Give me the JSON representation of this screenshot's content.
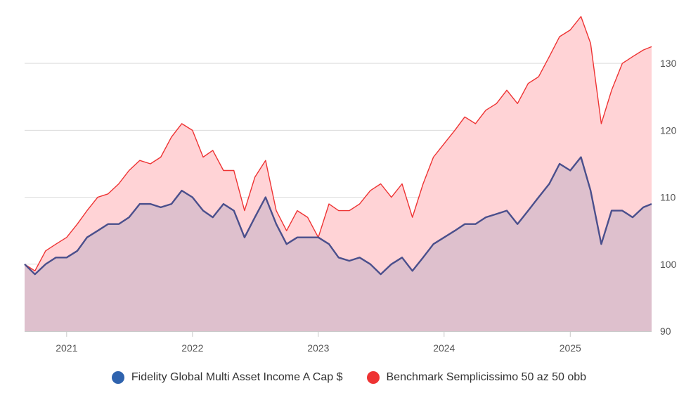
{
  "chart_data": {
    "type": "line",
    "title": "",
    "xlabel": "",
    "ylabel": "",
    "x_range": [
      "2020-09-01",
      "2025-08-25"
    ],
    "ylim": [
      90,
      138
    ],
    "y_ticks": [
      90,
      100,
      110,
      120,
      130
    ],
    "x_ticks": [
      "2021",
      "2022",
      "2023",
      "2024",
      "2025"
    ],
    "x_tick_dates": [
      "2021-01-01",
      "2022-01-01",
      "2023-01-01",
      "2024-01-01",
      "2025-01-01"
    ],
    "grid": true,
    "y_axis_side": "right",
    "legend_position": "bottom",
    "series": [
      {
        "name": "Benchmark Semplicissimo 50 az 50 obb",
        "color": "#ee3333",
        "fill": "#ffd3d6",
        "points": [
          [
            "2020-09-01",
            100
          ],
          [
            "2020-10-01",
            99
          ],
          [
            "2020-11-01",
            102
          ],
          [
            "2020-12-01",
            103
          ],
          [
            "2021-01-01",
            104
          ],
          [
            "2021-02-01",
            106
          ],
          [
            "2021-03-01",
            108
          ],
          [
            "2021-04-01",
            110
          ],
          [
            "2021-05-01",
            110.5
          ],
          [
            "2021-06-01",
            112
          ],
          [
            "2021-07-01",
            114
          ],
          [
            "2021-08-01",
            115.5
          ],
          [
            "2021-09-01",
            115
          ],
          [
            "2021-10-01",
            116
          ],
          [
            "2021-11-01",
            119
          ],
          [
            "2021-12-01",
            121
          ],
          [
            "2022-01-01",
            120
          ],
          [
            "2022-02-01",
            116
          ],
          [
            "2022-03-01",
            117
          ],
          [
            "2022-04-01",
            114
          ],
          [
            "2022-05-01",
            114
          ],
          [
            "2022-06-01",
            108
          ],
          [
            "2022-07-01",
            113
          ],
          [
            "2022-08-01",
            115.5
          ],
          [
            "2022-09-01",
            108
          ],
          [
            "2022-10-01",
            105
          ],
          [
            "2022-11-01",
            108
          ],
          [
            "2022-12-01",
            107
          ],
          [
            "2023-01-01",
            104
          ],
          [
            "2023-02-01",
            109
          ],
          [
            "2023-03-01",
            108
          ],
          [
            "2023-04-01",
            108
          ],
          [
            "2023-05-01",
            109
          ],
          [
            "2023-06-01",
            111
          ],
          [
            "2023-07-01",
            112
          ],
          [
            "2023-08-01",
            110
          ],
          [
            "2023-09-01",
            112
          ],
          [
            "2023-10-01",
            107
          ],
          [
            "2023-11-01",
            112
          ],
          [
            "2023-12-01",
            116
          ],
          [
            "2024-01-01",
            118
          ],
          [
            "2024-02-01",
            120
          ],
          [
            "2024-03-01",
            122
          ],
          [
            "2024-04-01",
            121
          ],
          [
            "2024-05-01",
            123
          ],
          [
            "2024-06-01",
            124
          ],
          [
            "2024-07-01",
            126
          ],
          [
            "2024-08-01",
            124
          ],
          [
            "2024-09-01",
            127
          ],
          [
            "2024-10-01",
            128
          ],
          [
            "2024-11-01",
            131
          ],
          [
            "2024-12-01",
            134
          ],
          [
            "2025-01-01",
            135
          ],
          [
            "2025-02-01",
            137
          ],
          [
            "2025-03-01",
            133
          ],
          [
            "2025-04-01",
            121
          ],
          [
            "2025-05-01",
            126
          ],
          [
            "2025-06-01",
            130
          ],
          [
            "2025-07-01",
            131
          ],
          [
            "2025-08-01",
            132
          ],
          [
            "2025-08-25",
            132.5
          ]
        ]
      },
      {
        "name": "Fidelity Global Multi Asset Income A Cap $",
        "color": "#4a4f8c",
        "fill": "#dcbfcc",
        "points": [
          [
            "2020-09-01",
            100
          ],
          [
            "2020-10-01",
            98.5
          ],
          [
            "2020-11-01",
            100
          ],
          [
            "2020-12-01",
            101
          ],
          [
            "2021-01-01",
            101
          ],
          [
            "2021-02-01",
            102
          ],
          [
            "2021-03-01",
            104
          ],
          [
            "2021-04-01",
            105
          ],
          [
            "2021-05-01",
            106
          ],
          [
            "2021-06-01",
            106
          ],
          [
            "2021-07-01",
            107
          ],
          [
            "2021-08-01",
            109
          ],
          [
            "2021-09-01",
            109
          ],
          [
            "2021-10-01",
            108.5
          ],
          [
            "2021-11-01",
            109
          ],
          [
            "2021-12-01",
            111
          ],
          [
            "2022-01-01",
            110
          ],
          [
            "2022-02-01",
            108
          ],
          [
            "2022-03-01",
            107
          ],
          [
            "2022-04-01",
            109
          ],
          [
            "2022-05-01",
            108
          ],
          [
            "2022-06-01",
            104
          ],
          [
            "2022-07-01",
            107
          ],
          [
            "2022-08-01",
            110
          ],
          [
            "2022-09-01",
            106
          ],
          [
            "2022-10-01",
            103
          ],
          [
            "2022-11-01",
            104
          ],
          [
            "2022-12-01",
            104
          ],
          [
            "2023-01-01",
            104
          ],
          [
            "2023-02-01",
            103
          ],
          [
            "2023-03-01",
            101
          ],
          [
            "2023-04-01",
            100.5
          ],
          [
            "2023-05-01",
            101
          ],
          [
            "2023-06-01",
            100
          ],
          [
            "2023-07-01",
            98.5
          ],
          [
            "2023-08-01",
            100
          ],
          [
            "2023-09-01",
            101
          ],
          [
            "2023-10-01",
            99
          ],
          [
            "2023-11-01",
            101
          ],
          [
            "2023-12-01",
            103
          ],
          [
            "2024-01-01",
            104
          ],
          [
            "2024-02-01",
            105
          ],
          [
            "2024-03-01",
            106
          ],
          [
            "2024-04-01",
            106
          ],
          [
            "2024-05-01",
            107
          ],
          [
            "2024-06-01",
            107.5
          ],
          [
            "2024-07-01",
            108
          ],
          [
            "2024-08-01",
            106
          ],
          [
            "2024-09-01",
            108
          ],
          [
            "2024-10-01",
            110
          ],
          [
            "2024-11-01",
            112
          ],
          [
            "2024-12-01",
            115
          ],
          [
            "2025-01-01",
            114
          ],
          [
            "2025-02-01",
            116
          ],
          [
            "2025-03-01",
            111
          ],
          [
            "2025-04-01",
            103
          ],
          [
            "2025-05-01",
            108
          ],
          [
            "2025-06-01",
            108
          ],
          [
            "2025-07-01",
            107
          ],
          [
            "2025-08-01",
            108.5
          ],
          [
            "2025-08-25",
            109
          ]
        ]
      }
    ]
  }
}
